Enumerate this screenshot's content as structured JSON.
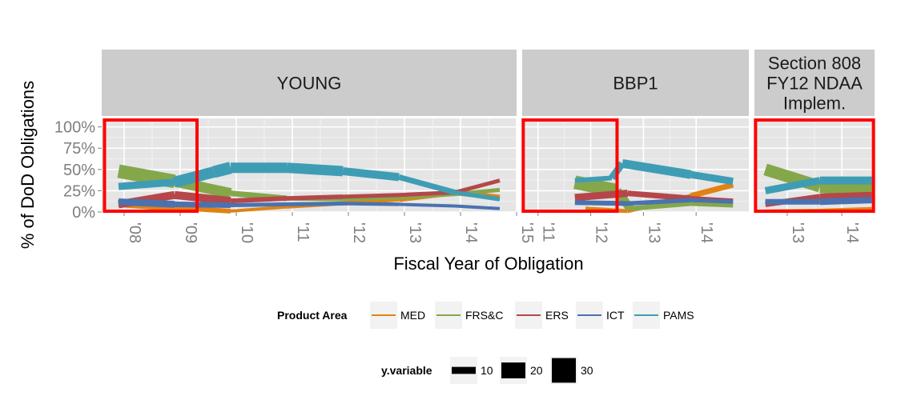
{
  "chart_data": {
    "type": "line",
    "xlabel": "Fiscal Year of Obligation",
    "ylabel": "% of DoD Obligations",
    "ylim": [
      0,
      1
    ],
    "y_ticks": [
      {
        "value": 0,
        "label": "0%"
      },
      {
        "value": 0.25,
        "label": "25%"
      },
      {
        "value": 0.5,
        "label": "50%"
      },
      {
        "value": 0.75,
        "label": "75%"
      },
      {
        "value": 1,
        "label": "100%"
      }
    ],
    "series_colors": {
      "MED": "#E08214",
      "FRS&C": "#84A74A",
      "ERS": "#B5474A",
      "ICT": "#4A72B0",
      "PAMS": "#3E9DB5"
    },
    "panels": [
      {
        "strip": [
          "YOUNG"
        ],
        "xlim": [
          2007.6,
          2015.0
        ],
        "x_ticks": [
          {
            "value": 2008,
            "label": "'08"
          },
          {
            "value": 2009,
            "label": "'09"
          },
          {
            "value": 2010,
            "label": "'10"
          },
          {
            "value": 2011,
            "label": "'11"
          },
          {
            "value": 2012,
            "label": "'12"
          },
          {
            "value": 2013,
            "label": "'13"
          },
          {
            "value": 2014,
            "label": "'14"
          },
          {
            "value": 2015,
            "label": "'15"
          }
        ],
        "highlight": [
          2007.65,
          2009.3
        ],
        "series": [
          {
            "name": "MED",
            "x": [
              2007.9,
              2008.9,
              2009.9,
              2010.9,
              2011.9,
              2012.9,
              2013.9,
              2014.7
            ],
            "y": [
              0.1,
              0.05,
              0.01,
              0.06,
              0.1,
              0.15,
              0.23,
              0.17
            ],
            "w": [
              10,
              8,
              4,
              4,
              5,
              6,
              8,
              6
            ]
          },
          {
            "name": "FRS&C",
            "x": [
              2007.9,
              2008.9,
              2009.9,
              2010.9,
              2011.9,
              2012.9,
              2013.9,
              2014.7
            ],
            "y": [
              0.48,
              0.36,
              0.22,
              0.16,
              0.15,
              0.17,
              0.21,
              0.26
            ],
            "w": [
              16,
              18,
              8,
              6,
              5,
              5,
              5,
              5
            ]
          },
          {
            "name": "ERS",
            "x": [
              2007.9,
              2008.9,
              2009.9,
              2010.9,
              2011.9,
              2012.9,
              2013.9,
              2014.7
            ],
            "y": [
              0.09,
              0.2,
              0.13,
              0.16,
              0.18,
              0.2,
              0.23,
              0.37
            ],
            "w": [
              6,
              14,
              6,
              6,
              5,
              5,
              5,
              5
            ]
          },
          {
            "name": "ICT",
            "x": [
              2007.9,
              2008.9,
              2009.9,
              2010.9,
              2011.9,
              2012.9,
              2013.9,
              2014.7
            ],
            "y": [
              0.12,
              0.09,
              0.08,
              0.09,
              0.1,
              0.09,
              0.07,
              0.04
            ],
            "w": [
              8,
              9,
              5,
              5,
              5,
              4,
              4,
              4
            ]
          },
          {
            "name": "PAMS",
            "x": [
              2007.9,
              2008.9,
              2009.6,
              2009.9,
              2010.9,
              2011.9,
              2012.9,
              2013.9,
              2014.7
            ],
            "y": [
              0.3,
              0.35,
              0.47,
              0.52,
              0.52,
              0.48,
              0.41,
              0.23,
              0.15
            ],
            "w": [
              8,
              10,
              18,
              12,
              14,
              12,
              8,
              6,
              5
            ]
          }
        ]
      },
      {
        "strip": [
          "BBP1"
        ],
        "xlim": [
          2010.7,
          2015.0
        ],
        "x_ticks": [
          {
            "value": 2011,
            "label": "'11"
          },
          {
            "value": 2012,
            "label": "'12"
          },
          {
            "value": 2013,
            "label": "'13"
          },
          {
            "value": 2014,
            "label": "'14"
          }
        ],
        "highlight": [
          2010.72,
          2012.5
        ],
        "series": [
          {
            "name": "MED",
            "x": [
              2011.9,
              2012.7,
              2013.9,
              2014.7
            ],
            "y": [
              0.04,
              0.01,
              0.19,
              0.32
            ],
            "w": [
              6,
              4,
              6,
              8
            ]
          },
          {
            "name": "FRS&C",
            "x": [
              2011.7,
              2012.5,
              2012.75,
              2013.9,
              2014.7
            ],
            "y": [
              0.35,
              0.25,
              0.04,
              0.1,
              0.08
            ],
            "w": [
              18,
              16,
              6,
              6,
              6
            ]
          },
          {
            "name": "ERS",
            "x": [
              2011.7,
              2012.7,
              2013.9,
              2014.7
            ],
            "y": [
              0.17,
              0.22,
              0.16,
              0.13
            ],
            "w": [
              10,
              8,
              6,
              6
            ]
          },
          {
            "name": "ICT",
            "x": [
              2011.7,
              2012.7,
              2013.9,
              2014.7
            ],
            "y": [
              0.11,
              0.1,
              0.14,
              0.12
            ],
            "w": [
              6,
              6,
              5,
              5
            ]
          },
          {
            "name": "PAMS",
            "x": [
              2011.7,
              2012.4,
              2012.6,
              2013.9,
              2014.7
            ],
            "y": [
              0.37,
              0.4,
              0.57,
              0.44,
              0.36
            ],
            "w": [
              6,
              6,
              12,
              10,
              8
            ]
          }
        ]
      },
      {
        "strip": [
          "Section 808",
          "FY12 NDAA",
          "Implem."
        ],
        "xlim": [
          2012.4,
          2014.6
        ],
        "x_ticks": [
          {
            "value": 2013,
            "label": "'13"
          },
          {
            "value": 2014,
            "label": "'14"
          }
        ],
        "highlight": [
          2012.42,
          2014.58
        ],
        "series": [
          {
            "name": "MED",
            "x": [
              2012.6,
              2013.6,
              2014.55
            ],
            "y": [
              0.01,
              0.02,
              0.04
            ],
            "w": [
              4,
              4,
              4
            ]
          },
          {
            "name": "FRS&C",
            "x": [
              2012.6,
              2013.6,
              2014.55
            ],
            "y": [
              0.5,
              0.3,
              0.26
            ],
            "w": [
              12,
              18,
              14
            ]
          },
          {
            "name": "ERS",
            "x": [
              2012.6,
              2013.6,
              2014.55
            ],
            "y": [
              0.09,
              0.18,
              0.2
            ],
            "w": [
              6,
              8,
              8
            ]
          },
          {
            "name": "ICT",
            "x": [
              2012.6,
              2013.6,
              2014.55
            ],
            "y": [
              0.12,
              0.12,
              0.14
            ],
            "w": [
              6,
              8,
              8
            ]
          },
          {
            "name": "PAMS",
            "x": [
              2012.6,
              2013.6,
              2014.55
            ],
            "y": [
              0.25,
              0.37,
              0.37
            ],
            "w": [
              8,
              10,
              10
            ]
          }
        ]
      }
    ],
    "legend": {
      "placement": "bottom",
      "color_title": "Product Area",
      "color_entries": [
        "MED",
        "FRS&C",
        "ERS",
        "ICT",
        "PAMS"
      ],
      "size_title": "y.variable",
      "size_entries": [
        {
          "label": "10",
          "w": 4
        },
        {
          "label": "20",
          "w": 9
        },
        {
          "label": "30",
          "w": 14
        }
      ]
    }
  }
}
